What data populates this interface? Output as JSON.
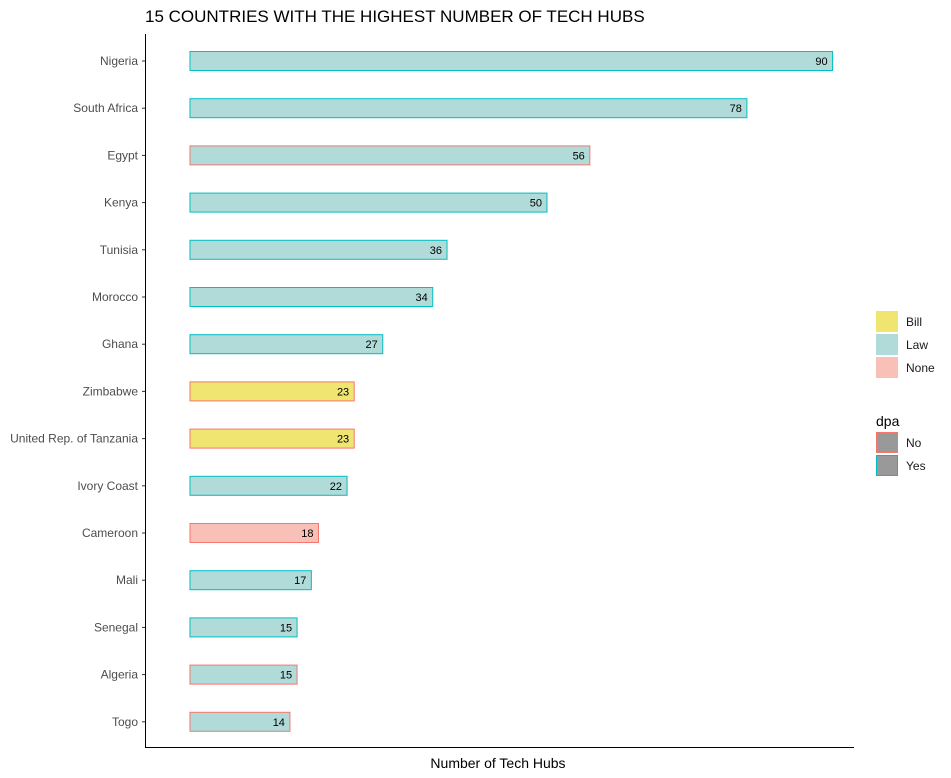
{
  "chart_data": {
    "type": "bar",
    "orientation": "horizontal",
    "title": "15 COUNTRIES WITH THE HIGHEST NUMBER OF TECH HUBS",
    "xlabel": "Number of Tech Hubs",
    "ylabel": "",
    "xlim": [
      -6.3,
      93
    ],
    "grid": false,
    "legend_position": "right",
    "categories": [
      "Nigeria",
      "South Africa",
      "Egypt",
      "Kenya",
      "Tunisia",
      "Morocco",
      "Ghana",
      "Zimbabwe",
      "United Rep. of Tanzania",
      "Ivory Coast",
      "Cameroon",
      "Mali",
      "Senegal",
      "Algeria",
      "Togo"
    ],
    "values": [
      90,
      78,
      56,
      50,
      36,
      34,
      27,
      23,
      23,
      22,
      18,
      17,
      15,
      15,
      14
    ],
    "fill_group": [
      "Law",
      "Law",
      "Law",
      "Law",
      "Law",
      "Law",
      "Law",
      "Bill",
      "Bill",
      "Law",
      "None",
      "Law",
      "Law",
      "Law",
      "Law"
    ],
    "dpa": [
      "Yes",
      "Yes",
      "No",
      "Yes",
      "Yes",
      "Yes",
      "Yes",
      "No",
      "No",
      "Yes",
      "No",
      "Yes",
      "Yes",
      "No",
      "No"
    ],
    "fill_legend": {
      "title": "",
      "entries": [
        {
          "label": "Bill",
          "color": "#f0e571"
        },
        {
          "label": "Law",
          "color": "#b0dbd8"
        },
        {
          "label": "None",
          "color": "#f9c0b8"
        }
      ]
    },
    "outline_legend": {
      "title": "dpa",
      "entries": [
        {
          "label": "No",
          "color": "#f8766d"
        },
        {
          "label": "Yes",
          "color": "#00bfc4"
        }
      ],
      "swatch_fill": "#999999"
    }
  }
}
